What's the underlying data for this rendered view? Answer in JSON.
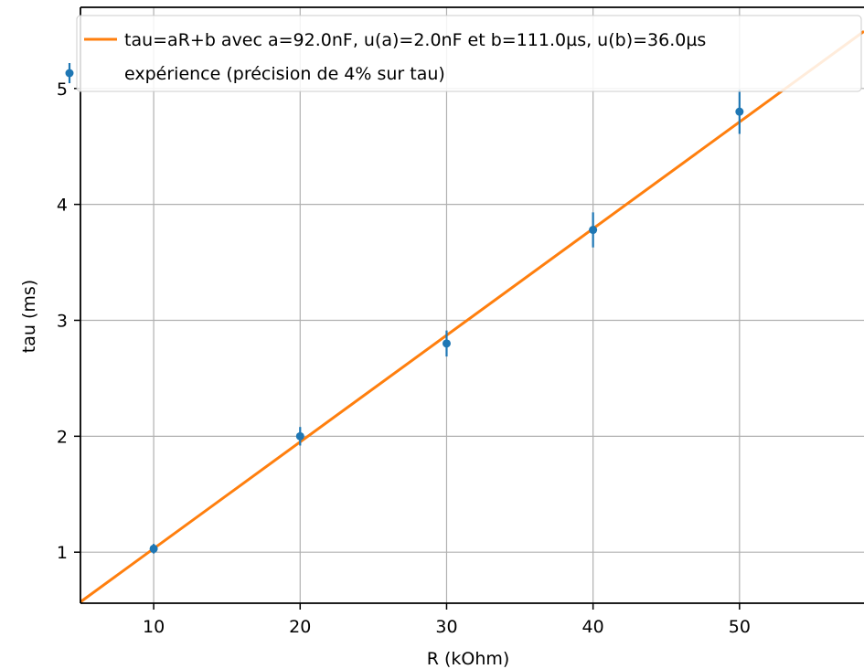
{
  "chart_data": {
    "type": "scatter",
    "xlabel": "R (kOhm)",
    "ylabel": "tau (ms)",
    "xlim": [
      5,
      58.5
    ],
    "ylim": [
      0.56,
      5.7
    ],
    "x_ticks": [
      10,
      20,
      30,
      40,
      50
    ],
    "y_ticks": [
      1,
      2,
      3,
      4,
      5
    ],
    "grid": true,
    "legend_position": "top-right",
    "colors": {
      "fit": "#ff7f0e",
      "data": "#1f77b4",
      "grid": "#b0b0b0"
    },
    "series": [
      {
        "name": "tau=aR+b avec a=92.0nF, u(a)=2.0nF et b=111.0µs, u(b)=36.0µs",
        "type": "line",
        "slope": 0.092,
        "intercept": 0.111,
        "x": [
          5,
          58.5
        ]
      },
      {
        "name": "expérience (précision de 4% sur tau)",
        "type": "errorbar",
        "x": [
          10,
          20,
          30,
          40,
          50
        ],
        "y": [
          1.03,
          2.0,
          2.8,
          3.78,
          4.8
        ],
        "yerr_percent": 4
      }
    ]
  }
}
